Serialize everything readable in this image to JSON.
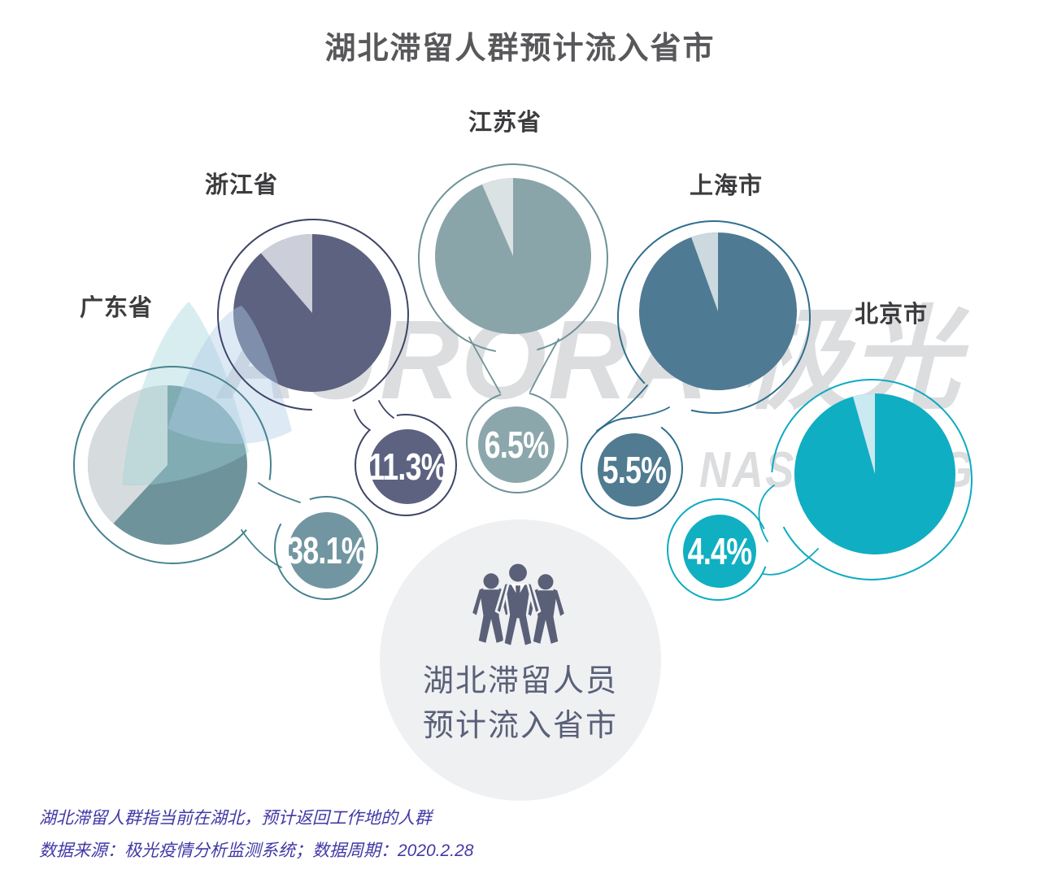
{
  "title": "湖北滞留人群预计流入省市",
  "watermark": {
    "brand": "AURORA 极光",
    "ticker": "NASDAQ:JG"
  },
  "center": {
    "icon": "people-group-icon",
    "line1": "湖北滞留人员",
    "line2": "预计流入省市"
  },
  "footnotes": {
    "definition": "湖北滞留人群指当前在湖北，预计返回工作地的人群",
    "source": "数据来源：极光疫情分析监测系统；数据周期：2020.2.28"
  },
  "colors": {
    "title_text": "#58585B",
    "label_text": "#3C3C3E",
    "center_bg": "#EFF0F2",
    "center_text": "#5A6078",
    "icon": "#5A6077",
    "footnote_text": "#4238A6",
    "watermark": "#DCDDDF",
    "percent_text": "#FFFFFF"
  },
  "chart_data": {
    "type": "pie",
    "title": "湖北滞留人群预计流入省市",
    "unit": "%",
    "legend_position": "none",
    "layout_hint": "five separate pies, light wedge sweeps counter-clockwise from 12 o'clock equal to each share",
    "series": [
      {
        "name": "广东省",
        "value": 38.1,
        "label": "38.1%",
        "color": "#6F939B",
        "slice_color": "#D6DCDD",
        "ring_color": "#47828F",
        "bubble_color": "#7296A1"
      },
      {
        "name": "浙江省",
        "value": 11.3,
        "label": "11.3%",
        "color": "#5C6280",
        "slice_color": "#CCCFD9",
        "ring_color": "#3E4566",
        "bubble_color": "#5C6280"
      },
      {
        "name": "江苏省",
        "value": 6.5,
        "label": "6.5%",
        "color": "#8AA5AA",
        "slice_color": "#DAE2E3",
        "ring_color": "#6E9298",
        "bubble_color": "#8BA7AC"
      },
      {
        "name": "上海市",
        "value": 5.5,
        "label": "5.5%",
        "color": "#4F7A93",
        "slice_color": "#CCD9DF",
        "ring_color": "#2F6E8E",
        "bubble_color": "#507B91"
      },
      {
        "name": "北京市",
        "value": 4.4,
        "label": "4.4%",
        "color": "#10AEC2",
        "slice_color": "#CBE9F1",
        "ring_color": "#0EABC0",
        "bubble_color": "#11AFC2"
      }
    ]
  }
}
